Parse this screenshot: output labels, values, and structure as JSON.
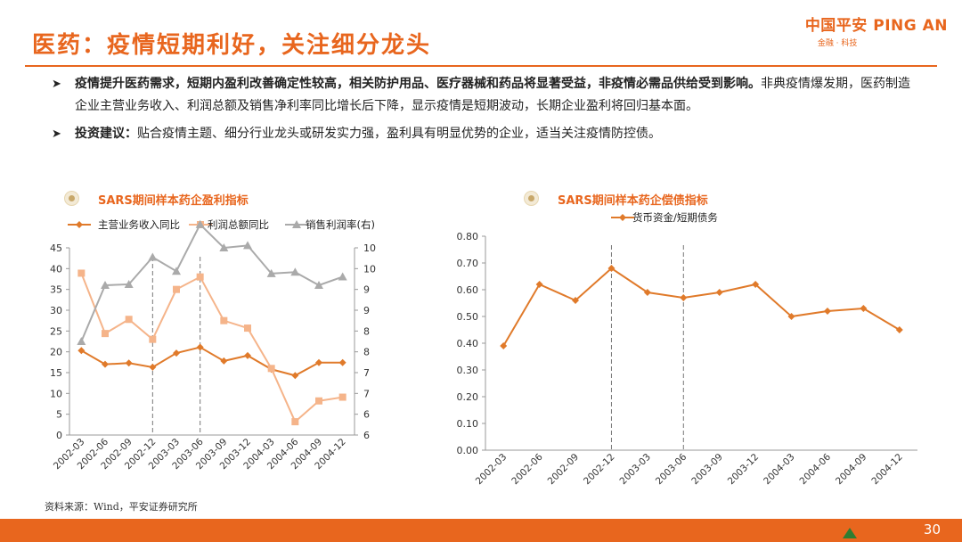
{
  "header": {
    "title": "医药：疫情短期利好，关注细分龙头",
    "logo_main": "中国平安 PING AN",
    "logo_sub": "金融 · 科技"
  },
  "bullets": [
    {
      "bold": "疫情提升医药需求，短期内盈利改善确定性较高，相关防护用品、医疗器械和药品将显著受益，非疫情必需品供给受到影响。",
      "text": "非典疫情爆发期，医药制造企业主营业务收入、利润总额及销售净利率同比增长后下降，显示疫情是短期波动，长期企业盈利将回归基本面。"
    },
    {
      "bold": "投资建议：",
      "text": "贴合疫情主题、细分行业龙头或研发实力强，盈利具有明显优势的企业，适当关注疫情防控债。"
    }
  ],
  "source": "资料来源：Wind，平安证券研究所",
  "page_number": "30",
  "colors": {
    "accent": "#e8661e",
    "series1": "#e07a2a",
    "series2": "#f5b48a",
    "series3": "#aaaaaa"
  },
  "chart_data": [
    {
      "type": "line",
      "title": "SARS期间样本药企盈利指标",
      "categories": [
        "2002-03",
        "2002-06",
        "2002-09",
        "2002-12",
        "2003-03",
        "2003-06",
        "2003-09",
        "2003-12",
        "2004-03",
        "2004-06",
        "2004-09",
        "2004-12"
      ],
      "ylim": [
        0,
        45
      ],
      "y2lim": [
        6,
        10
      ],
      "yticks": [
        "0",
        "5",
        "10",
        "15",
        "20",
        "25",
        "30",
        "35",
        "40",
        "45"
      ],
      "y2ticks": [
        "6",
        "6",
        "7",
        "7",
        "8",
        "8",
        "9",
        "9",
        "10",
        "10"
      ],
      "vlines": [
        "2002-12",
        "2003-06"
      ],
      "legend_position": "top",
      "series": [
        {
          "name": "主营业务收入同比",
          "axis": "left",
          "marker": "diamond",
          "values": [
            20.3,
            17.0,
            17.3,
            16.3,
            19.7,
            21.1,
            17.8,
            19.1,
            15.8,
            14.3,
            17.4,
            17.4
          ]
        },
        {
          "name": "利润总额同比",
          "axis": "left",
          "marker": "square",
          "values": [
            38.9,
            24.4,
            27.8,
            23.0,
            35.0,
            38.0,
            27.5,
            25.7,
            16.0,
            3.2,
            8.2,
            9.1
          ]
        },
        {
          "name": "销售利润率(右)",
          "axis": "right",
          "marker": "triangle",
          "values": [
            8.0,
            9.2,
            9.22,
            9.8,
            9.5,
            10.5,
            10.0,
            10.05,
            9.45,
            9.48,
            9.2,
            9.38
          ]
        }
      ]
    },
    {
      "type": "line",
      "title": "SARS期间样本药企偿债指标",
      "categories": [
        "2002-03",
        "2002-06",
        "2002-09",
        "2002-12",
        "2003-03",
        "2003-06",
        "2003-09",
        "2003-12",
        "2004-03",
        "2004-06",
        "2004-09",
        "2004-12"
      ],
      "ylim": [
        0,
        0.8
      ],
      "yticks": [
        "0.00",
        "0.10",
        "0.20",
        "0.30",
        "0.40",
        "0.50",
        "0.60",
        "0.70",
        "0.80"
      ],
      "vlines": [
        "2002-12",
        "2003-06"
      ],
      "legend_position": "top",
      "series": [
        {
          "name": "货币资金/短期债务",
          "marker": "diamond",
          "values": [
            0.39,
            0.62,
            0.56,
            0.68,
            0.59,
            0.57,
            0.59,
            0.62,
            0.5,
            0.52,
            0.53,
            0.45
          ]
        }
      ]
    }
  ]
}
